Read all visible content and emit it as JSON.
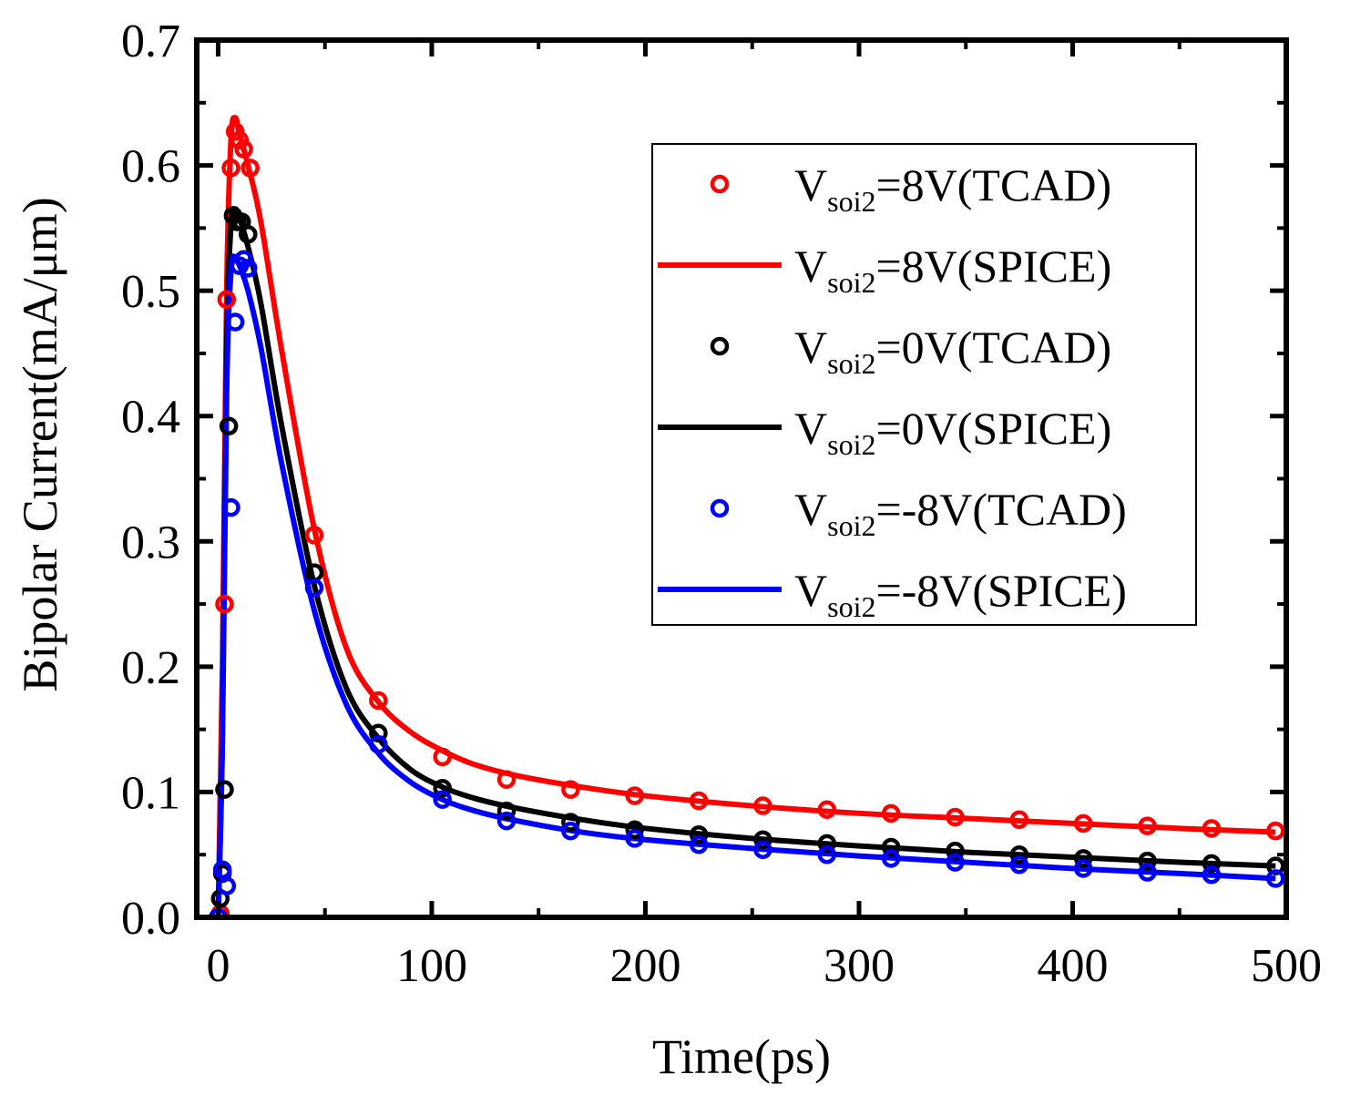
{
  "chart_data": {
    "type": "line",
    "title": "",
    "xlabel": "Time(ps)",
    "ylabel": "Bipolar Current(mA/μm)",
    "xlim": [
      -10,
      500
    ],
    "ylim": [
      0,
      0.7
    ],
    "xticks": [
      "0",
      "100",
      "200",
      "300",
      "400",
      "500"
    ],
    "xtick_values": [
      0,
      100,
      200,
      300,
      400,
      500
    ],
    "yticks": [
      "0.0",
      "0.1",
      "0.2",
      "0.3",
      "0.4",
      "0.5",
      "0.6",
      "0.7"
    ],
    "ytick_values": [
      0.0,
      0.1,
      0.2,
      0.3,
      0.4,
      0.5,
      0.6,
      0.7
    ],
    "grid": false,
    "legend_position": "top-right",
    "series": [
      {
        "name_main": "V",
        "name_sub": "soi2",
        "name_rest": "=8V(TCAD)",
        "kind": "markers",
        "color": "#ff0000",
        "x": [
          1,
          3,
          4,
          6,
          8,
          10,
          12,
          15,
          45,
          75,
          105,
          135,
          165,
          195,
          225,
          255,
          285,
          315,
          345,
          375,
          405,
          435,
          465,
          495
        ],
        "y": [
          0.003,
          0.25,
          0.493,
          0.598,
          0.627,
          0.62,
          0.613,
          0.598,
          0.305,
          0.173,
          0.128,
          0.11,
          0.102,
          0.097,
          0.093,
          0.089,
          0.086,
          0.083,
          0.08,
          0.078,
          0.075,
          0.073,
          0.071,
          0.069
        ]
      },
      {
        "name_main": "V",
        "name_sub": "soi2",
        "name_rest": "=8V(SPICE)",
        "kind": "line",
        "color": "#ff0000",
        "x": [
          0,
          2,
          4,
          6,
          8,
          10,
          14,
          20,
          30,
          45,
          60,
          75,
          90,
          105,
          120,
          140,
          170,
          200,
          250,
          300,
          350,
          400,
          450,
          495
        ],
        "y": [
          0.0,
          0.2,
          0.5,
          0.62,
          0.638,
          0.625,
          0.6,
          0.555,
          0.45,
          0.31,
          0.215,
          0.172,
          0.148,
          0.133,
          0.122,
          0.113,
          0.104,
          0.097,
          0.089,
          0.083,
          0.079,
          0.075,
          0.071,
          0.068
        ]
      },
      {
        "name_main": "V",
        "name_sub": "soi2",
        "name_rest": "=0V(TCAD)",
        "kind": "markers",
        "color": "#000000",
        "x": [
          0,
          1,
          2,
          3,
          5,
          7,
          9,
          11,
          14,
          45,
          75,
          105,
          135,
          165,
          195,
          225,
          255,
          285,
          315,
          345,
          375,
          405,
          435,
          465,
          495
        ],
        "y": [
          0.0,
          0.015,
          0.035,
          0.102,
          0.392,
          0.56,
          0.555,
          0.555,
          0.545,
          0.275,
          0.147,
          0.103,
          0.085,
          0.076,
          0.07,
          0.066,
          0.062,
          0.059,
          0.056,
          0.053,
          0.05,
          0.047,
          0.045,
          0.043,
          0.041
        ]
      },
      {
        "name_main": "V",
        "name_sub": "soi2",
        "name_rest": "=0V(SPICE)",
        "kind": "line",
        "color": "#000000",
        "x": [
          0,
          2,
          4,
          6,
          8,
          10,
          14,
          20,
          30,
          45,
          60,
          75,
          90,
          105,
          120,
          140,
          170,
          200,
          250,
          300,
          350,
          400,
          450,
          495
        ],
        "y": [
          0.0,
          0.15,
          0.45,
          0.552,
          0.565,
          0.558,
          0.535,
          0.49,
          0.39,
          0.265,
          0.183,
          0.143,
          0.118,
          0.104,
          0.095,
          0.087,
          0.078,
          0.071,
          0.063,
          0.057,
          0.052,
          0.048,
          0.044,
          0.041
        ]
      },
      {
        "name_main": "V",
        "name_sub": "soi2",
        "name_rest": "=-8V(TCAD)",
        "kind": "markers",
        "color": "#0000ff",
        "x": [
          0,
          2,
          4,
          6,
          8,
          10,
          12,
          14,
          45,
          75,
          105,
          135,
          165,
          195,
          225,
          255,
          285,
          315,
          345,
          375,
          405,
          435,
          465,
          495
        ],
        "y": [
          0.0,
          0.038,
          0.025,
          0.327,
          0.475,
          0.52,
          0.525,
          0.518,
          0.263,
          0.138,
          0.094,
          0.077,
          0.069,
          0.063,
          0.058,
          0.054,
          0.05,
          0.047,
          0.044,
          0.042,
          0.039,
          0.036,
          0.034,
          0.031
        ]
      },
      {
        "name_main": "V",
        "name_sub": "soi2",
        "name_rest": "=-8V(SPICE)",
        "kind": "line",
        "color": "#0000ff",
        "x": [
          0,
          2,
          4,
          6,
          8,
          10,
          14,
          20,
          30,
          45,
          60,
          75,
          90,
          105,
          120,
          140,
          170,
          200,
          250,
          300,
          350,
          400,
          450,
          495
        ],
        "y": [
          0.0,
          0.14,
          0.42,
          0.515,
          0.527,
          0.52,
          0.5,
          0.455,
          0.36,
          0.245,
          0.17,
          0.131,
          0.108,
          0.094,
          0.085,
          0.077,
          0.068,
          0.062,
          0.055,
          0.049,
          0.044,
          0.039,
          0.035,
          0.031
        ]
      }
    ]
  }
}
